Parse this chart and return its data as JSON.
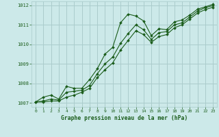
{
  "title": "Graphe pression niveau de la mer (hPa)",
  "background_color": "#cce9e9",
  "grid_color": "#aacccc",
  "line_color": "#1a5c1a",
  "marker_color": "#1a5c1a",
  "xlim": [
    -0.5,
    23.5
  ],
  "ylim": [
    1006.8,
    1012.2
  ],
  "xticks": [
    0,
    1,
    2,
    3,
    4,
    5,
    6,
    7,
    8,
    9,
    10,
    11,
    12,
    13,
    14,
    15,
    16,
    17,
    18,
    19,
    20,
    21,
    22,
    23
  ],
  "yticks": [
    1007,
    1008,
    1009,
    1010,
    1011,
    1012
  ],
  "series1_x": [
    0,
    1,
    2,
    3,
    4,
    5,
    6,
    7,
    8,
    9,
    10,
    11,
    12,
    13,
    14,
    15,
    16,
    17,
    18,
    19,
    20,
    21,
    22,
    23
  ],
  "series1_y": [
    1007.05,
    1007.3,
    1007.4,
    1007.2,
    1007.85,
    1007.75,
    1007.75,
    1008.2,
    1008.75,
    1009.5,
    1009.85,
    1011.1,
    1011.55,
    1011.45,
    1011.2,
    1010.45,
    1010.8,
    1010.75,
    1011.15,
    1011.25,
    1011.5,
    1011.8,
    1011.92,
    1012.05
  ],
  "series2_x": [
    0,
    1,
    2,
    3,
    4,
    5,
    6,
    7,
    8,
    9,
    10,
    11,
    12,
    13,
    14,
    15,
    16,
    17,
    18,
    19,
    20,
    21,
    22,
    23
  ],
  "series2_y": [
    1007.05,
    1007.1,
    1007.2,
    1007.15,
    1007.55,
    1007.6,
    1007.65,
    1007.9,
    1008.5,
    1009.0,
    1009.35,
    1010.05,
    1010.55,
    1011.0,
    1010.75,
    1010.25,
    1010.6,
    1010.65,
    1011.0,
    1011.1,
    1011.4,
    1011.7,
    1011.88,
    1011.98
  ],
  "series3_x": [
    0,
    1,
    2,
    3,
    4,
    5,
    6,
    7,
    8,
    9,
    10,
    11,
    12,
    13,
    14,
    15,
    16,
    17,
    18,
    19,
    20,
    21,
    22,
    23
  ],
  "series3_y": [
    1007.05,
    1007.05,
    1007.1,
    1007.1,
    1007.3,
    1007.4,
    1007.55,
    1007.75,
    1008.3,
    1008.7,
    1009.05,
    1009.7,
    1010.2,
    1010.7,
    1010.5,
    1010.1,
    1010.4,
    1010.5,
    1010.85,
    1011.0,
    1011.3,
    1011.6,
    1011.78,
    1011.9
  ]
}
